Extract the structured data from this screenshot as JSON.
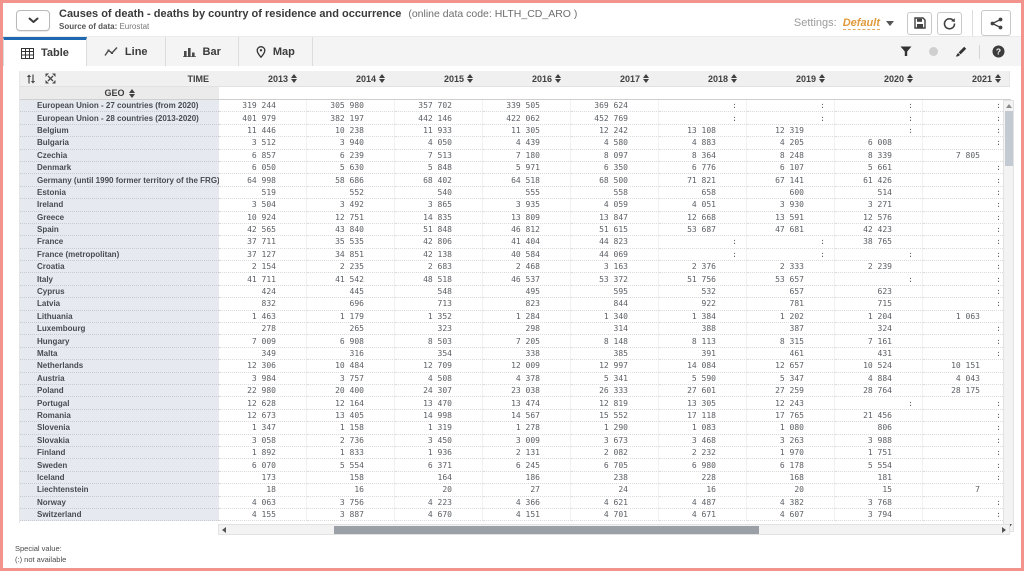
{
  "header": {
    "title": "Causes of death - deaths by country of residence and occurrence",
    "data_code": "(online data code: HLTH_CD_ARO )",
    "source_label": "Source of data:",
    "source_value": "Eurostat",
    "settings_label": "Settings:",
    "settings_value": "Default"
  },
  "tabs": [
    {
      "label": "Table",
      "icon": "table-icon",
      "active": true
    },
    {
      "label": "Line",
      "icon": "line-chart-icon",
      "active": false
    },
    {
      "label": "Bar",
      "icon": "bar-chart-icon",
      "active": false
    },
    {
      "label": "Map",
      "icon": "map-pin-icon",
      "active": false
    }
  ],
  "toolbar_icons": [
    "filter-icon",
    "circle-icon-disabled",
    "brush-icon",
    "help-icon"
  ],
  "header_icons": [
    "save-icon",
    "refresh-icon",
    "share-icon"
  ],
  "colors": {
    "accent_blue": "#1e68b2",
    "settings_orange": "#e09a3b",
    "frame_red": "#f2938d",
    "geo_column_bg": "#e6eaf0"
  },
  "table": {
    "time_label": "TIME",
    "geo_label": "GEO",
    "years": [
      "2013",
      "2014",
      "2015",
      "2016",
      "2017",
      "2018",
      "2019",
      "2020",
      "2021"
    ],
    "missing_symbol": ":",
    "rows": [
      {
        "geo": "European Union - 27 countries (from 2020)",
        "values": [
          "319 244",
          "305 980",
          "357 702",
          "339 505",
          "369 624",
          ":",
          ":",
          ":",
          ":"
        ]
      },
      {
        "geo": "European Union - 28 countries (2013-2020)",
        "values": [
          "401 979",
          "382 197",
          "442 146",
          "422 062",
          "452 769",
          ":",
          ":",
          ":",
          ":"
        ]
      },
      {
        "geo": "Belgium",
        "values": [
          "11 446",
          "10 238",
          "11 933",
          "11 305",
          "12 242",
          "13 108",
          "12 319",
          ":",
          ":"
        ]
      },
      {
        "geo": "Bulgaria",
        "values": [
          "3 512",
          "3 940",
          "4 050",
          "4 439",
          "4 580",
          "4 883",
          "4 205",
          "6 008",
          ":"
        ]
      },
      {
        "geo": "Czechia",
        "values": [
          "6 857",
          "6 239",
          "7 513",
          "7 180",
          "8 097",
          "8 364",
          "8 248",
          "8 339",
          "7 805"
        ]
      },
      {
        "geo": "Denmark",
        "values": [
          "6 050",
          "5 630",
          "5 848",
          "5 971",
          "6 350",
          "6 776",
          "6 107",
          "5 661",
          ":"
        ]
      },
      {
        "geo": "Germany (until 1990 former territory of the FRG)",
        "values": [
          "64 998",
          "58 686",
          "68 402",
          "64 518",
          "68 500",
          "71 821",
          "67 141",
          "61 426",
          ":"
        ]
      },
      {
        "geo": "Estonia",
        "values": [
          "519",
          "552",
          "540",
          "555",
          "558",
          "658",
          "600",
          "514",
          ":"
        ]
      },
      {
        "geo": "Ireland",
        "values": [
          "3 504",
          "3 492",
          "3 865",
          "3 935",
          "4 059",
          "4 051",
          "3 930",
          "3 271",
          ":"
        ]
      },
      {
        "geo": "Greece",
        "values": [
          "10 924",
          "12 751",
          "14 835",
          "13 809",
          "13 847",
          "12 668",
          "13 591",
          "12 576",
          ":"
        ]
      },
      {
        "geo": "Spain",
        "values": [
          "42 565",
          "43 840",
          "51 848",
          "46 812",
          "51 615",
          "53 687",
          "47 681",
          "42 423",
          ":"
        ]
      },
      {
        "geo": "France",
        "values": [
          "37 711",
          "35 535",
          "42 806",
          "41 404",
          "44 823",
          ":",
          ":",
          "38 765",
          ":"
        ]
      },
      {
        "geo": "France (metropolitan)",
        "values": [
          "37 127",
          "34 851",
          "42 138",
          "40 584",
          "44 069",
          ":",
          ":",
          ":",
          ":"
        ]
      },
      {
        "geo": "Croatia",
        "values": [
          "2 154",
          "2 235",
          "2 683",
          "2 468",
          "3 163",
          "2 376",
          "2 333",
          "2 239",
          ":"
        ]
      },
      {
        "geo": "Italy",
        "values": [
          "41 711",
          "41 542",
          "48 518",
          "46 537",
          "53 372",
          "51 756",
          "53 657",
          ":",
          ":"
        ]
      },
      {
        "geo": "Cyprus",
        "values": [
          "424",
          "445",
          "548",
          "495",
          "595",
          "532",
          "657",
          "623",
          ":"
        ]
      },
      {
        "geo": "Latvia",
        "values": [
          "832",
          "696",
          "713",
          "823",
          "844",
          "922",
          "781",
          "715",
          ":"
        ]
      },
      {
        "geo": "Lithuania",
        "values": [
          "1 463",
          "1 179",
          "1 352",
          "1 284",
          "1 340",
          "1 384",
          "1 202",
          "1 204",
          "1 063"
        ]
      },
      {
        "geo": "Luxembourg",
        "values": [
          "278",
          "265",
          "323",
          "298",
          "314",
          "388",
          "387",
          "324",
          ":"
        ]
      },
      {
        "geo": "Hungary",
        "values": [
          "7 009",
          "6 908",
          "8 503",
          "7 205",
          "8 148",
          "8 113",
          "8 315",
          "7 161",
          ":"
        ]
      },
      {
        "geo": "Malta",
        "values": [
          "349",
          "316",
          "354",
          "338",
          "385",
          "391",
          "461",
          "431",
          ":"
        ]
      },
      {
        "geo": "Netherlands",
        "values": [
          "12 306",
          "10 484",
          "12 709",
          "12 009",
          "12 997",
          "14 084",
          "12 657",
          "10 524",
          "10 151"
        ]
      },
      {
        "geo": "Austria",
        "values": [
          "3 984",
          "3 757",
          "4 508",
          "4 378",
          "5 341",
          "5 590",
          "5 347",
          "4 884",
          "4 043"
        ]
      },
      {
        "geo": "Poland",
        "values": [
          "22 980",
          "20 400",
          "24 307",
          "23 038",
          "26 333",
          "27 601",
          "27 259",
          "28 764",
          "28 175"
        ]
      },
      {
        "geo": "Portugal",
        "values": [
          "12 628",
          "12 164",
          "13 470",
          "13 474",
          "12 819",
          "13 305",
          "12 243",
          ":",
          ":"
        ]
      },
      {
        "geo": "Romania",
        "values": [
          "12 673",
          "13 405",
          "14 998",
          "14 567",
          "15 552",
          "17 118",
          "17 765",
          "21 456",
          ":"
        ]
      },
      {
        "geo": "Slovenia",
        "values": [
          "1 347",
          "1 158",
          "1 319",
          "1 278",
          "1 290",
          "1 083",
          "1 080",
          "806",
          ":"
        ]
      },
      {
        "geo": "Slovakia",
        "values": [
          "3 058",
          "2 736",
          "3 450",
          "3 009",
          "3 673",
          "3 468",
          "3 263",
          "3 988",
          ":"
        ]
      },
      {
        "geo": "Finland",
        "values": [
          "1 892",
          "1 833",
          "1 936",
          "2 131",
          "2 082",
          "2 232",
          "1 970",
          "1 751",
          ":"
        ]
      },
      {
        "geo": "Sweden",
        "values": [
          "6 070",
          "5 554",
          "6 371",
          "6 245",
          "6 705",
          "6 980",
          "6 178",
          "5 554",
          ":"
        ]
      },
      {
        "geo": "Iceland",
        "values": [
          "173",
          "158",
          "164",
          "186",
          "238",
          "228",
          "168",
          "181",
          ":"
        ]
      },
      {
        "geo": "Liechtenstein",
        "values": [
          "18",
          "16",
          "20",
          "27",
          "24",
          "16",
          "20",
          "15",
          "7"
        ]
      },
      {
        "geo": "Norway",
        "values": [
          "4 063",
          "3 756",
          "4 223",
          "4 366",
          "4 621",
          "4 487",
          "4 382",
          "3 768",
          ":"
        ]
      },
      {
        "geo": "Switzerland",
        "values": [
          "4 155",
          "3 887",
          "4 670",
          "4 151",
          "4 701",
          "4 671",
          "4 607",
          "3 794",
          ":"
        ]
      }
    ]
  },
  "footer": {
    "special_value_label": "Special value:",
    "special_value_text": "(:) not available"
  }
}
